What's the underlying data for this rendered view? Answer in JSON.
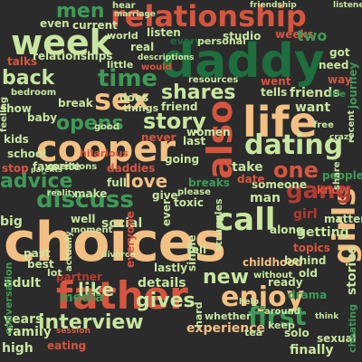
{
  "words": {
    "choices": "choices",
    "daddy": "daddy",
    "relationship": "relationship",
    "father": "father",
    "cooper": "cooper",
    "week": "week",
    "life": "life",
    "also": "also",
    "sex": "sex",
    "time": "time",
    "dating": "dating",
    "call": "call",
    "enjoy": "enjoy",
    "girls": "girls",
    "interview": "interview",
    "discuss": "discuss",
    "story": "story",
    "shares": "shares",
    "opens": "opens",
    "advice": "advice",
    "back": "back",
    "men": "men",
    "first": "first",
    "gives": "gives",
    "like": "like",
    "gang": "gang",
    "one": "one",
    "love": "love",
    "new": "new",
    "friends": "friends",
    "friend": "friend",
    "want": "want",
    "people": "people",
    "take": "take",
    "man": "man",
    "getting": "getting",
    "details": "details",
    "experience": "experience",
    "finally": "finally",
    "stories": "stories",
    "someone": "someone",
    "social": "social",
    "well": "well",
    "big": "big",
    "partner": "partner",
    "media": "media",
    "adult": "adult",
    "years": "years",
    "family": "family",
    "high": "high",
    "eating": "eating",
    "childhood": "childhood",
    "ready": "ready",
    "solo": "solo",
    "sexual": "sexual",
    "drama": "drama",
    "talks": "talks",
    "relationships": "relationships",
    "even": "even",
    "show": "show",
    "current": "current",
    "listen": "listen",
    "real": "real",
    "studio": "studio",
    "weeks": "weeks",
    "two": "two",
    "got": "got",
    "need": "need",
    "tells": "tells",
    "went": "went",
    "women": "women",
    "date": "date",
    "know": "know",
    "matter": "matter",
    "never": "never",
    "going": "going",
    "last": "last",
    "daddies": "daddies",
    "give": "give",
    "ever": "ever",
    "toxic": "toxic",
    "everyone": "everyone",
    "kids": "kids",
    "school": "school",
    "favorite": "favorite",
    "questions": "questions",
    "conversation": "conversation",
    "make": "make",
    "things": "things",
    "does": "does",
    "every": "every",
    "world": "world",
    "personal": "personal",
    "resources": "resources",
    "hear": "hear",
    "marriage": "marriage",
    "friendship": "friendship",
    "listener": "listener",
    "feeling": "feeling",
    "bedroom": "bedroom",
    "break": "break",
    "baby": "baby",
    "hilarious": "hilarious",
    "full": "full",
    "please": "please",
    "tell": "tell",
    "single": "single",
    "behind": "behind",
    "topics": "topics",
    "along": "along",
    "moment": "moment",
    "divorce": "divorce",
    "keep": "keep",
    "hard": "hard",
    "tea": "tea",
    "whether": "whether",
    "without": "without",
    "old": "old",
    "cheating": "cheating",
    "little": "little",
    "descriptions": "descriptions",
    "would": "would",
    "way": "way",
    "journey": "journey",
    "crazy": "crazy",
    "recent": "recent",
    "stop": "stop",
    "lot": "lot",
    "best": "best",
    "past": "past",
    "actually": "actually",
    "lastly": "lastly",
    "around": "around",
    "struggles": "struggles",
    "breaks": "breaks",
    "parents": "parents",
    "reality": "reality",
    "girl": "girl",
    "good": "good",
    "share": "share",
    "life2": "life",
    "session": "session",
    "think": "think",
    "free": "free",
    "help": "help"
  }
}
